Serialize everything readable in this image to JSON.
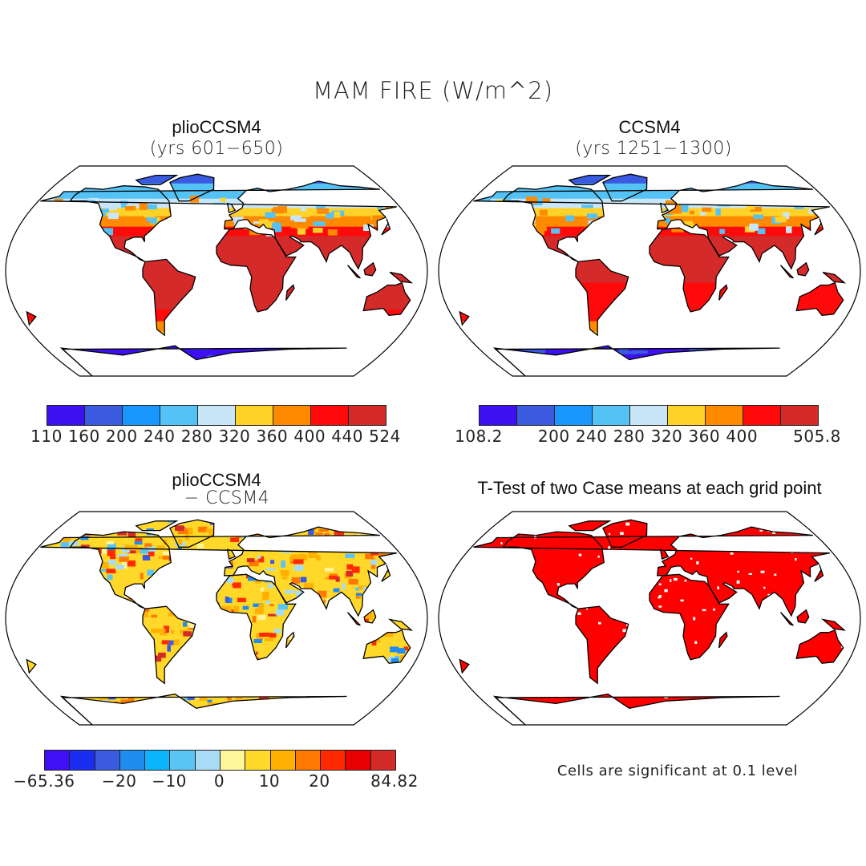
{
  "title": "MAM FIRE (W/m^2)",
  "panels": [
    {
      "title": "plioCCSM4",
      "subtitle": "(yrs 601−650)"
    },
    {
      "title": "CCSM4",
      "subtitle": "(yrs 1251−1300)"
    },
    {
      "title": "plioCCSM4",
      "subtitle": "− CCSM4"
    },
    {
      "title": "T-Test of two Case means at each grid point",
      "note": "Cells are significant at 0.1 level"
    }
  ],
  "colorbars": [
    {
      "colors": [
        "#3c10f0",
        "#3a5ae0",
        "#1a96ff",
        "#55c2f5",
        "#c8e6f8",
        "#ffd22a",
        "#ff8a00",
        "#ff0a0a",
        "#d52a2a"
      ],
      "labels": [
        "110",
        "160",
        "200",
        "240",
        "280",
        "320",
        "360",
        "400",
        "440",
        "524"
      ]
    },
    {
      "colors": [
        "#3c10f0",
        "#3a5ae0",
        "#1a96ff",
        "#55c2f5",
        "#c8e6f8",
        "#ffd22a",
        "#ff8a00",
        "#ff0a0a",
        "#d52a2a"
      ],
      "labels": [
        "108.2",
        "",
        "200",
        "240",
        "280",
        "320",
        "360",
        "400",
        "",
        "505.8"
      ]
    },
    {
      "colors": [
        "#4010f5",
        "#1a2df0",
        "#3a5ae0",
        "#1e8cf0",
        "#0ab4ff",
        "#5ac4f5",
        "#a8dcf5",
        "#fff59a",
        "#ffd82a",
        "#ffb000",
        "#ff7800",
        "#ff2a00",
        "#e60000",
        "#d52a2a"
      ],
      "labels": [
        "−65.36",
        "",
        "",
        "−20",
        "",
        "−10",
        "",
        "0",
        "",
        "10",
        "",
        "20",
        "",
        "",
        "84.82"
      ]
    }
  ],
  "significance_color": "#ff0000"
}
